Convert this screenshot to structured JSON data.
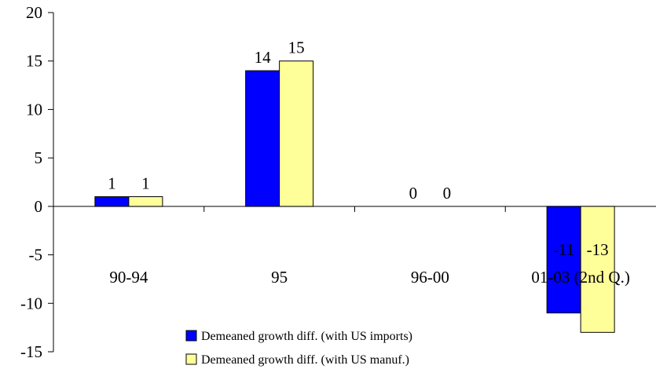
{
  "chart_data": {
    "type": "bar",
    "categories": [
      "90-94",
      "95",
      "96-00",
      "01-03 (2nd Q.)"
    ],
    "series": [
      {
        "name": "Demeaned growth diff. (with US imports)",
        "values": [
          1,
          14,
          0,
          -11
        ],
        "color": "#0000FF"
      },
      {
        "name": "Demeaned growth diff. (with US manuf.)",
        "values": [
          1,
          15,
          0,
          -13
        ],
        "color": "#FFFF99"
      }
    ],
    "data_labels": [
      [
        "1",
        "14",
        "0",
        "-11"
      ],
      [
        "1",
        "15",
        "0",
        "-13"
      ]
    ],
    "yticks": [
      "20",
      "15",
      "10",
      "5",
      "0",
      "-5",
      "-10",
      "-15"
    ],
    "ylim": [
      -15,
      20
    ],
    "grid": false,
    "legend_position": "bottom",
    "title": "",
    "xlabel": "",
    "ylabel": ""
  }
}
